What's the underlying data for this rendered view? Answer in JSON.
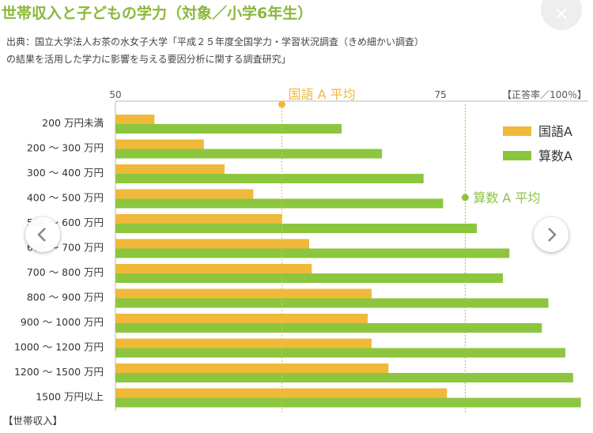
{
  "title": "世帯収入と子どもの学力（対象／小学6年生）",
  "source_line1": "出典：国立大学法人お茶の水女子大学「平成２５年度全国学力・学習状況調査（きめ細かい調査）",
  "source_line2": "の結果を活用した学力に影響を与える要因分析に関する調査研究」",
  "close_icon": "×",
  "colors": {
    "kokugo": "#f0b93a",
    "sansu": "#8cc63f",
    "title": "#8ab83a"
  },
  "chart_data": {
    "type": "bar",
    "orientation": "horizontal",
    "title": "世帯収入と子どもの学力（対象／小学6年生）",
    "unit_label": "【正答率／100％】",
    "category_axis_label": "【世帯収入】",
    "categories": [
      "200 万円未満",
      "200 ～ 300 万円",
      "300 ～ 400 万円",
      "400 ～ 500 万円",
      "500 ～ 600 万円",
      "600 ～ 700 万円",
      "700 ～ 800 万円",
      "800 ～ 900 万円",
      "900 ～ 1000 万円",
      "1000 ～ 1200 万円",
      "1200 ～ 1500 万円",
      "1500 万円以上"
    ],
    "xlim": [
      50,
      86
    ],
    "xticks": [
      50,
      75
    ],
    "series": [
      {
        "name": "国語A",
        "values": [
          53.0,
          56.8,
          58.4,
          60.6,
          62.8,
          64.9,
          65.1,
          69.7,
          69.4,
          69.7,
          71.0,
          75.5
        ]
      },
      {
        "name": "算数A",
        "values": [
          67.4,
          70.5,
          73.7,
          75.2,
          77.8,
          80.3,
          79.8,
          83.3,
          82.8,
          84.6,
          85.2,
          85.8
        ]
      }
    ],
    "reference_lines": [
      {
        "label": "国語 A 平均",
        "value": 62.8
      },
      {
        "label": "算数 A 平均",
        "value": 76.9
      }
    ],
    "legend_position": "right"
  }
}
